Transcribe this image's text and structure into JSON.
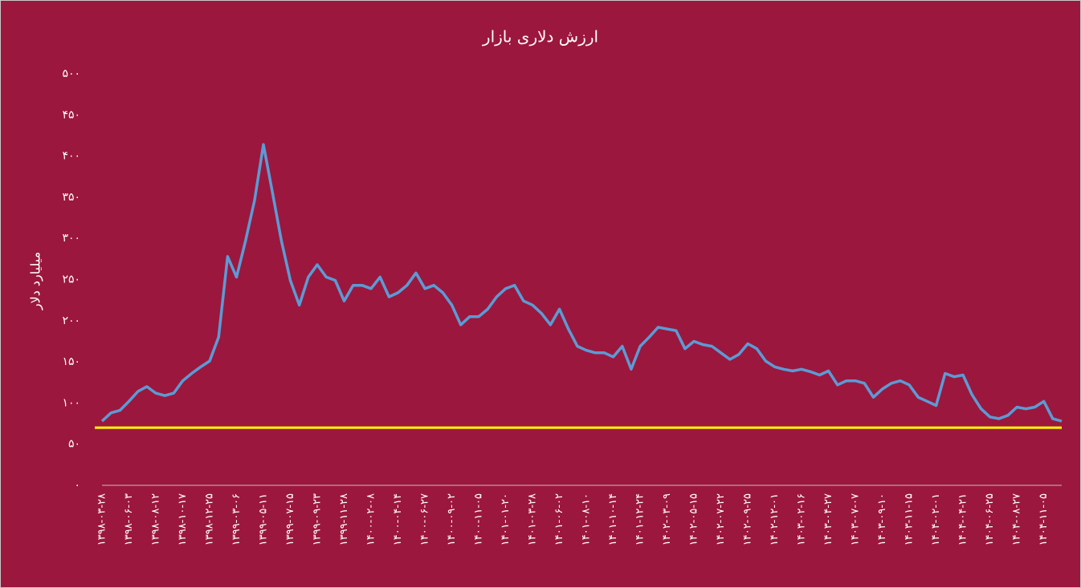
{
  "chart_data": {
    "type": "line",
    "title": "ارزش دلاری بازار",
    "y_label": "میلیارد دلار",
    "categories": [
      "۱۳۹۸-۰۳-۲۸",
      null,
      null,
      "۱۳۹۸-۰۶-۰۳",
      null,
      null,
      "۱۳۹۸-۰۸-۱۲",
      null,
      null,
      "۱۳۹۸-۱۰-۱۷",
      null,
      null,
      "۱۳۹۸-۱۲-۲۵",
      null,
      null,
      "۱۳۹۹-۰۳-۰۶",
      null,
      null,
      "۱۳۹۹-۰۵-۱۱",
      null,
      null,
      "۱۳۹۹-۰۷-۱۵",
      null,
      null,
      "۱۳۹۹-۰۹-۲۳",
      null,
      null,
      "۱۳۹۹-۱۱-۲۸",
      null,
      null,
      "۱۴۰۰-۰۲-۰۸",
      null,
      null,
      "۱۴۰۰-۰۴-۱۴",
      null,
      null,
      "۱۴۰۰-۰۶-۲۷",
      null,
      null,
      "۱۴۰۰-۰۹-۰۲",
      null,
      null,
      "۱۴۰۰-۱۱-۰۵",
      null,
      null,
      "۱۴۰۱-۰۱-۲۰",
      null,
      null,
      "۱۴۰۱-۰۳-۲۸",
      null,
      null,
      "۱۴۰۱-۰۶-۰۲",
      null,
      null,
      "۱۴۰۱-۰۸-۱۰",
      null,
      null,
      "۱۴۰۱-۱۰-۱۴",
      null,
      null,
      "۱۴۰۱-۱۲-۲۴",
      null,
      null,
      "۱۴۰۲-۰۳-۰۹",
      null,
      null,
      "۱۴۰۲-۰۵-۱۵",
      null,
      null,
      "۱۴۰۲-۰۷-۲۲",
      null,
      null,
      "۱۴۰۲-۰۹-۲۵",
      null,
      null,
      "۱۴۰۲-۱۲-۰۱",
      null,
      null,
      "۱۴۰۳-۰۲-۱۶",
      null,
      null,
      "۱۴۰۳-۰۴-۲۷",
      null,
      null,
      "۱۴۰۳-۰۷-۰۷",
      null,
      null,
      "۱۴۰۳-۰۹-۱۰",
      null,
      null,
      "۱۴۰۳-۱۱-۱۵",
      null,
      null,
      "۱۴۰۴-۰۲-۰۱",
      null,
      null,
      "۱۴۰۴-۰۴-۲۱",
      null,
      null,
      "۱۴۰۴-۰۶-۲۵",
      null,
      null,
      "۱۴۰۴-۰۸-۲۷",
      null,
      null,
      "۱۴۰۴-۱۱-۰۵",
      null,
      null
    ],
    "series": [
      {
        "color": "#5b9bd5",
        "values": [
          78,
          88,
          91,
          102,
          114,
          120,
          112,
          109,
          112,
          127,
          136,
          144,
          151,
          180,
          278,
          253,
          297,
          346,
          414,
          356,
          297,
          249,
          219,
          253,
          268,
          253,
          249,
          224,
          243,
          243,
          239,
          253,
          229,
          234,
          243,
          258,
          239,
          243,
          234,
          219,
          195,
          205,
          205,
          214,
          229,
          239,
          243,
          224,
          219,
          209,
          195,
          214,
          190,
          169,
          164,
          161,
          161,
          156,
          169,
          141,
          169,
          180,
          192,
          190,
          188,
          166,
          175,
          171,
          169,
          161,
          153,
          159,
          172,
          166,
          151,
          144,
          141,
          139,
          141,
          138,
          134,
          139,
          122,
          127,
          127,
          124,
          107,
          117,
          124,
          127,
          122,
          107,
          102,
          97,
          136,
          132,
          134,
          110,
          93,
          83,
          81,
          85,
          95,
          93,
          95,
          102,
          81,
          78
        ]
      }
    ],
    "reference_line": {
      "value": 70,
      "color": "#ffff00"
    },
    "ylim": [
      0,
      500
    ],
    "yticks": [
      {
        "value": 0,
        "label": "۰"
      },
      {
        "value": 50,
        "label": "۵۰"
      },
      {
        "value": 100,
        "label": "۱۰۰"
      },
      {
        "value": 150,
        "label": "۱۵۰"
      },
      {
        "value": 200,
        "label": "۲۰۰"
      },
      {
        "value": 250,
        "label": "۲۵۰"
      },
      {
        "value": 300,
        "label": "۳۰۰"
      },
      {
        "value": 350,
        "label": "۳۵۰"
      },
      {
        "value": 400,
        "label": "۴۰۰"
      },
      {
        "value": 450,
        "label": "۴۵۰"
      },
      {
        "value": 500,
        "label": "۵۰۰"
      }
    ],
    "grid": false
  }
}
